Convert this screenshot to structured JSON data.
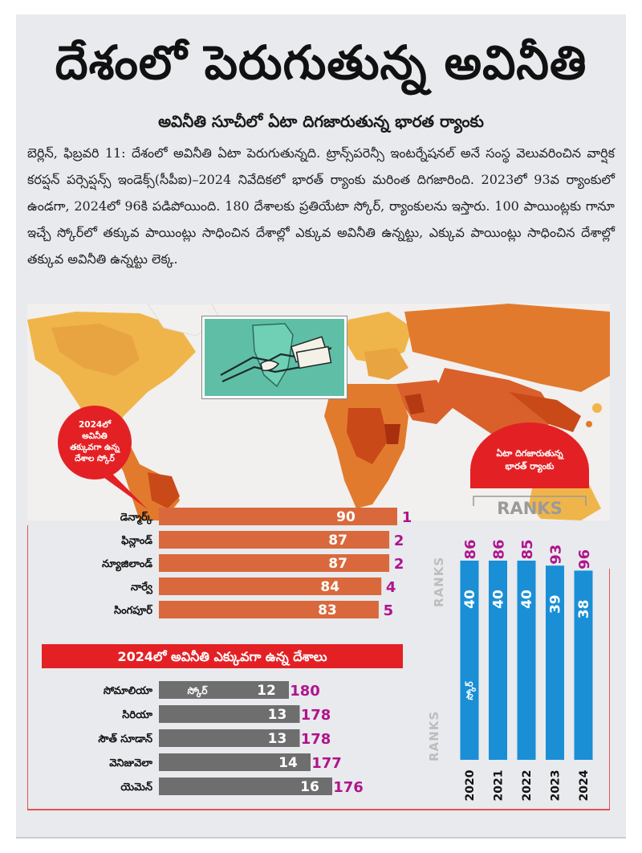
{
  "headline": "దేశంలో పెరుగుతున్న అవినీతి",
  "subheadline": "అవినీతి సూచీలో ఏటా దిగజారుతున్న భారత ర్యాంకు",
  "body_text": "బెర్లిన్, ఫిబ్రవరి 11: దేశంలో అవినీతి ఏటా పెరుగుతున్నది. ట్రాన్స్‌పరెన్సీ ఇంటర్నేషనల్ అనే సంస్థ వెలువరించిన వార్షిక కరప్షన్ పర్సెప్షన్స్ ఇండెక్స్(సీపీఐ)–2024 నివేదికలో భారత్ ర్యాంకు మరింత దిగజారింది. 2023లో 93వ ర్యాంకులో ఉండగా, 2024లో 96కి పడిపోయింది. 180 దేశాలకు ప్రతియేటా స్కోర్, ర్యాంకులను ఇస్తారు. 100 పాయింట్లకు గానూ ఇచ్చే స్కోర్‌లో తక్కువ పాయింట్లు సాధించిన దేశాల్లో ఎక్కువ అవినీతి ఉన్నట్టు, ఎక్కువ పాయింట్లు సాధించిన దేశాల్లో తక్కువ అవినీతి ఉన్నట్టు లెక్క.",
  "colors": {
    "least_bar": "#d9693c",
    "most_bar": "#6e6e6e",
    "rank_text": "#b0148c",
    "india_bar": "#1a8fd6",
    "india_rank": "#b0148c",
    "badge_red": "#e32124",
    "banner_red": "#e32124",
    "map_dark": "#c94a18",
    "map_mid": "#e27a2e",
    "map_light": "#f0b54a"
  },
  "icons": [
    "world-map-graphic",
    "handshake-money-illustration"
  ],
  "chart_data": [
    {
      "type": "bar",
      "orientation": "horizontal",
      "badge": "2024లో అవినీతి తక్కువగా ఉన్న దేశాల స్కోర్",
      "rank_axis_label": "RANKS",
      "categories": [
        "డెన్మార్క్",
        "ఫిన్లాండ్",
        "న్యూజిలాండ్",
        "నార్వే",
        "సింగపూర్"
      ],
      "values": [
        90,
        87,
        87,
        84,
        83
      ],
      "ranks": [
        1,
        2,
        2,
        4,
        5
      ],
      "xlim": [
        0,
        100
      ]
    },
    {
      "type": "bar",
      "orientation": "horizontal",
      "title": "2024లో అవినీతి ఎక్కువగా ఉన్న దేశాలు",
      "score_label": "స్కోర్",
      "rank_axis_label": "RANKS",
      "categories": [
        "సోమాలియా",
        "సిరియా",
        "సౌత్ సూడాన్",
        "వెనిజువెలా",
        "యెమెన్"
      ],
      "values": [
        12,
        13,
        13,
        14,
        16
      ],
      "ranks": [
        180,
        178,
        178,
        177,
        176
      ],
      "xlim": [
        0,
        20
      ]
    },
    {
      "type": "bar",
      "orientation": "vertical",
      "badge": "ఏటా దిగజారుతున్న భారత్ ర్యాంకు",
      "header": "RANKS",
      "score_label": "స్కోర్",
      "categories": [
        "2020",
        "2021",
        "2022",
        "2023",
        "2024"
      ],
      "values": [
        40,
        40,
        40,
        39,
        38
      ],
      "ranks": [
        86,
        86,
        85,
        93,
        96
      ],
      "ylim": [
        0,
        40
      ]
    }
  ]
}
